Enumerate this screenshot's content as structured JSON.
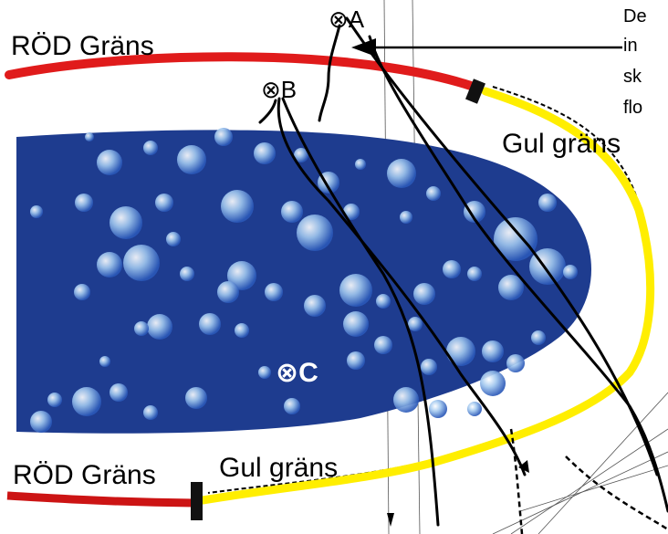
{
  "labels": {
    "red_top": "RÖD Gräns",
    "red_bottom": "RÖD Gräns",
    "yellow_right": "Gul gräns",
    "yellow_bottom": "Gul gräns",
    "point_a": "⊗A",
    "point_b": "⊗B",
    "point_c": "⊗C",
    "note_lines": [
      "De",
      "in",
      "sk",
      "flo"
    ]
  },
  "colors": {
    "red_border": "#e01b1b",
    "yellow_border": "#ffee00",
    "field_fill": "#1e3c8f",
    "ink": "#000000"
  }
}
